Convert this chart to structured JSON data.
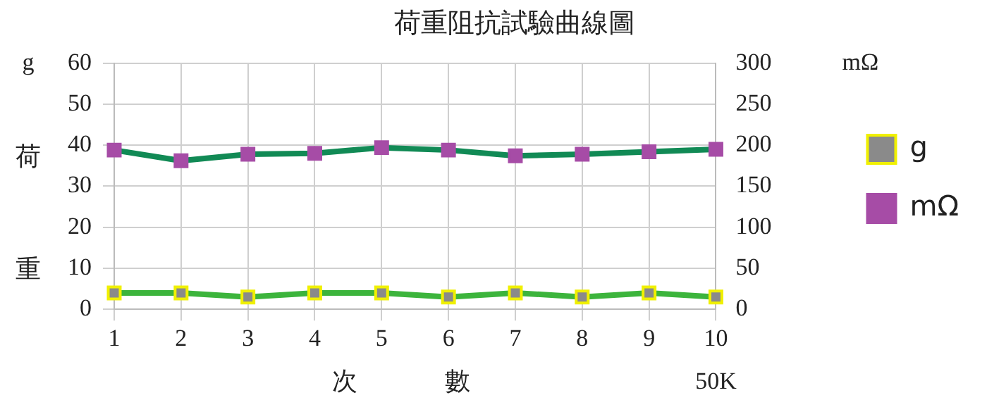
{
  "chart_data": {
    "type": "line",
    "title": "荷重阻抗試驗曲線圖",
    "xlabel": "次數",
    "y2label": "mΩ",
    "annotations": [
      "g",
      "50K",
      "荷",
      "重"
    ],
    "categories": [
      "1",
      "2",
      "3",
      "4",
      "5",
      "6",
      "7",
      "8",
      "9",
      "10"
    ],
    "series": [
      {
        "name": "g",
        "color": "#3cb43c",
        "values": [
          4,
          4,
          3,
          4,
          4,
          3,
          4,
          3,
          4,
          3
        ]
      },
      {
        "name": "mΩ",
        "color": "#118a55",
        "axis": "y2",
        "values": [
          194,
          181,
          189,
          190,
          197,
          194,
          187,
          189,
          192,
          195
        ]
      }
    ],
    "ylim": [
      0,
      60
    ],
    "yticks": [
      0,
      10,
      20,
      30,
      40,
      50,
      60
    ],
    "y2lim": [
      0,
      300
    ],
    "y2ticks": [
      0,
      50,
      100,
      150,
      200,
      250,
      300
    ],
    "grid": true,
    "legend": "right",
    "marker": "square",
    "line_style": "solid"
  }
}
